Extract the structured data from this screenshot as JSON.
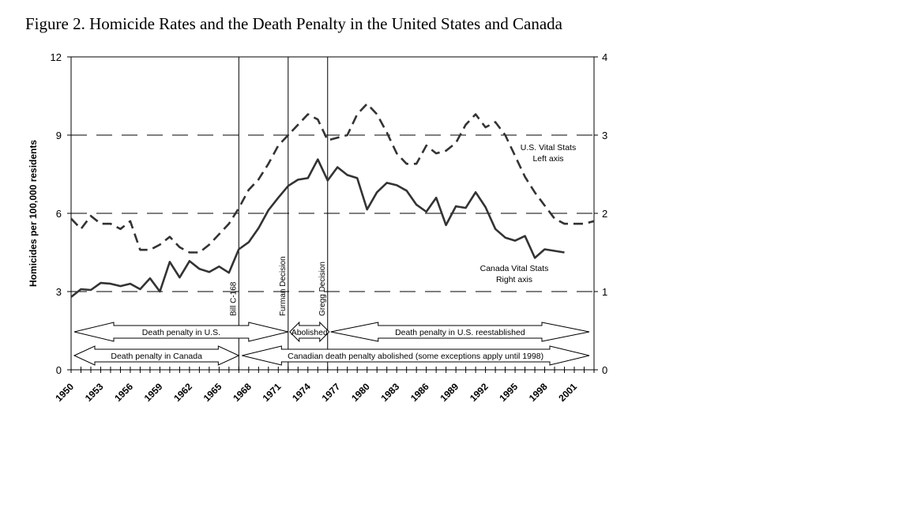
{
  "figure": {
    "title": "Figure 2. Homicide Rates and the Death Penalty in the United States and Canada"
  },
  "chart_data": {
    "type": "line",
    "title": "Figure 2. Homicide Rates and the Death Penalty in the United States and Canada",
    "ylabel": "Homicides per 100,000 residents",
    "ylim_left": [
      0,
      12
    ],
    "ylim_right": [
      0,
      4
    ],
    "xlim": [
      1950,
      2003
    ],
    "left_ticks": [
      "0",
      "3",
      "6",
      "9",
      "12"
    ],
    "right_ticks": [
      "0",
      "1",
      "2",
      "3",
      "4"
    ],
    "x_tick_labels": [
      "1950",
      "1953",
      "1956",
      "1959",
      "1962",
      "1965",
      "1968",
      "1971",
      "1974",
      "1977",
      "1980",
      "1983",
      "1986",
      "1989",
      "1992",
      "1995",
      "1998",
      "2001"
    ],
    "grid_y": true,
    "series": [
      {
        "name": "U.S. Vital Stats",
        "axis_note": "Left axis",
        "axis": "left",
        "style": "dashed",
        "x": [
          1950,
          1951,
          1952,
          1953,
          1954,
          1955,
          1956,
          1957,
          1958,
          1959,
          1960,
          1961,
          1962,
          1963,
          1964,
          1965,
          1966,
          1967,
          1968,
          1969,
          1970,
          1971,
          1972,
          1973,
          1974,
          1975,
          1976,
          1977,
          1978,
          1979,
          1980,
          1981,
          1982,
          1983,
          1984,
          1985,
          1986,
          1987,
          1988,
          1989,
          1990,
          1991,
          1992,
          1993,
          1994,
          1995,
          1996,
          1997,
          1998,
          1999,
          2000,
          2001,
          2002,
          2003
        ],
        "y": [
          5.8,
          5.4,
          5.9,
          5.6,
          5.6,
          5.4,
          5.7,
          4.6,
          4.6,
          4.8,
          5.1,
          4.7,
          4.5,
          4.5,
          4.8,
          5.2,
          5.6,
          6.2,
          6.9,
          7.3,
          7.9,
          8.6,
          9.0,
          9.4,
          9.8,
          9.6,
          8.8,
          8.9,
          9.0,
          9.8,
          10.2,
          9.8,
          9.1,
          8.3,
          7.9,
          7.9,
          8.6,
          8.3,
          8.4,
          8.7,
          9.4,
          9.8,
          9.3,
          9.5,
          9.0,
          8.2,
          7.4,
          6.8,
          6.3,
          5.8,
          5.6,
          5.6,
          5.6,
          5.7
        ]
      },
      {
        "name": "Canada Vital Stats",
        "axis_note": "Right axis",
        "axis": "right",
        "style": "solid",
        "x": [
          1950,
          1951,
          1952,
          1953,
          1954,
          1955,
          1956,
          1957,
          1958,
          1959,
          1960,
          1961,
          1962,
          1963,
          1964,
          1965,
          1966,
          1967,
          1968,
          1969,
          1970,
          1971,
          1972,
          1973,
          1974,
          1975,
          1976,
          1977,
          1978,
          1979,
          1980,
          1981,
          1982,
          1983,
          1984,
          1985,
          1986,
          1987,
          1988,
          1989,
          1990,
          1991,
          1992,
          1993,
          1994,
          1995,
          1996,
          1997,
          1998,
          1999,
          2000
        ],
        "y": [
          0.93,
          1.03,
          1.02,
          1.11,
          1.1,
          1.07,
          1.1,
          1.03,
          1.17,
          1.0,
          1.38,
          1.18,
          1.39,
          1.29,
          1.25,
          1.32,
          1.24,
          1.54,
          1.63,
          1.81,
          2.04,
          2.2,
          2.35,
          2.43,
          2.45,
          2.69,
          2.42,
          2.59,
          2.49,
          2.45,
          2.05,
          2.27,
          2.39,
          2.36,
          2.29,
          2.11,
          2.02,
          2.2,
          1.85,
          2.09,
          2.07,
          2.27,
          2.08,
          1.8,
          1.69,
          1.65,
          1.71,
          1.43,
          1.54,
          1.52,
          1.5
        ]
      }
    ],
    "annotations": {
      "us_label": [
        "U.S. Vital Stats",
        "Left axis"
      ],
      "canada_label": [
        "Canada Vital Stats",
        "Right axis"
      ],
      "events": [
        {
          "year": 1967,
          "label": "Bill C-168"
        },
        {
          "year": 1972,
          "label": "Furman Decision"
        },
        {
          "year": 1976,
          "label": "Gregg Decision"
        }
      ],
      "periods": [
        {
          "label": "Death penalty in U.S."
        },
        {
          "label": "Abolished"
        },
        {
          "label": "Death penalty in U.S. reestablished"
        },
        {
          "label": "Death penalty in Canada"
        },
        {
          "label": "Canadian death penalty abolished (some exceptions apply until 1998)"
        }
      ]
    }
  }
}
